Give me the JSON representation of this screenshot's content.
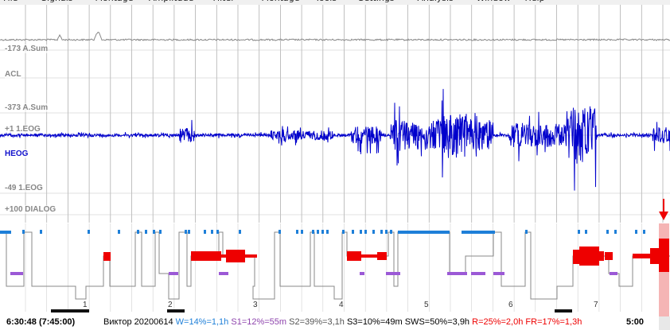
{
  "menu": [
    "File",
    "Signals",
    "Montage",
    "Amplitude",
    "Filter",
    "Montage",
    "Tools",
    "Settings",
    "Analysis",
    "Window",
    "Help"
  ],
  "channels": [
    {
      "label": "-173 A.Sum",
      "color": "#888888"
    },
    {
      "label": "ACL",
      "color": "#888888"
    },
    {
      "label": "-373 A.Sum",
      "color": "#888888"
    },
    {
      "label": "+1 1.EOG",
      "color": "#888888"
    },
    {
      "label": "HEOG",
      "color": "#1010cc"
    },
    {
      "label": "-49 1.EOG",
      "color": "#888888"
    },
    {
      "label": "+100 DIALOG",
      "color": "#888888"
    }
  ],
  "hour_labels": [
    "1",
    "2",
    "3",
    "4",
    "5",
    "6",
    "7"
  ],
  "status": {
    "start_time": "6:30:48 (7:45:00)",
    "patient": "Виктор 20200614",
    "w": "W=14%=1,1h",
    "s1": "S1=12%=55m",
    "s2": "S2=39%=3,1h",
    "s3": "S3=10%=49m",
    "sws": "SWS=50%=3,9h",
    "r": "R=25%=2,0h",
    "fr": "FR=17%=1,3h",
    "end_time": "5:00"
  },
  "colors": {
    "signal": "#0000cc",
    "wake": "#1e7fd8",
    "rem": "#ee0000",
    "s1": "#9b59d6",
    "cursor": "#f5b5b5",
    "status_w": "#1e7fd8",
    "status_s1": "#8e44ad",
    "status_s2": "#555555",
    "status_s3": "#000000",
    "status_sws": "#000000",
    "status_r": "#ee0000",
    "status_fr": "#ee0000"
  }
}
